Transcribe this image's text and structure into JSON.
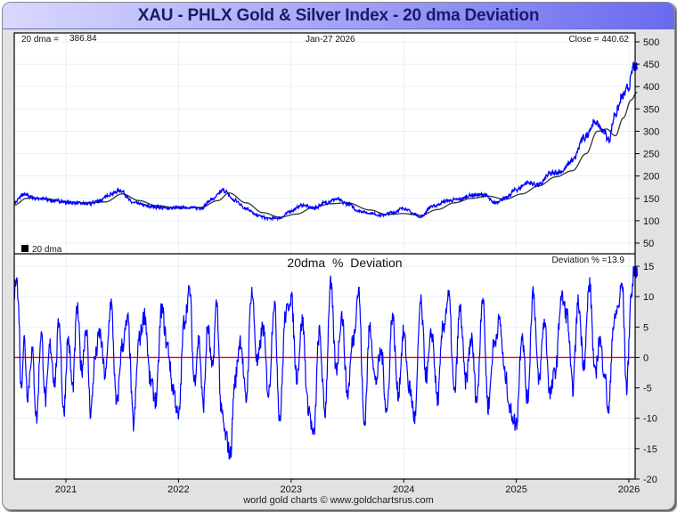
{
  "header": {
    "title": "XAU - PHLX Gold & Silver Index - 20 dma Deviation"
  },
  "footer": {
    "credit": "world gold charts © www.goldchartsrus.com"
  },
  "colors": {
    "price": "#0000ff",
    "dma": "#333333",
    "deviation": "#0000ff",
    "zero_line": "#ff0000",
    "grid": "#e6f0f8"
  },
  "chart_data": [
    {
      "type": "line",
      "panel": "price",
      "info": {
        "dma_label": "20 dma =",
        "dma_value": "386.84",
        "date": "Jan-27  2026",
        "close": "Close = 440.62"
      },
      "legend": {
        "label": "20 dma",
        "placement": "bottom-left"
      },
      "ylim": [
        35,
        520
      ],
      "yticks": [
        50,
        100,
        150,
        200,
        250,
        300,
        350,
        400,
        450,
        500
      ],
      "ytick_labels": [
        "50",
        "100",
        "150",
        "200",
        "250",
        "300",
        "350",
        "400",
        "450",
        "500"
      ],
      "xlim": [
        2020.54,
        2026.08
      ],
      "series": [
        {
          "name": "Close",
          "x": [
            2020.54,
            2020.62,
            2020.75,
            2020.9,
            2021.05,
            2021.2,
            2021.3,
            2021.4,
            2021.48,
            2021.6,
            2021.75,
            2021.9,
            2022.05,
            2022.2,
            2022.3,
            2022.4,
            2022.5,
            2022.6,
            2022.7,
            2022.8,
            2022.9,
            2023.0,
            2023.1,
            2023.2,
            2023.3,
            2023.4,
            2023.5,
            2023.6,
            2023.7,
            2023.8,
            2023.9,
            2024.0,
            2024.1,
            2024.15,
            2024.25,
            2024.4,
            2024.5,
            2024.6,
            2024.72,
            2024.8,
            2024.9,
            2025.0,
            2025.1,
            2025.2,
            2025.3,
            2025.4,
            2025.5,
            2025.6,
            2025.7,
            2025.78,
            2025.82,
            2025.88,
            2025.95,
            2026.0,
            2026.04,
            2026.07
          ],
          "y": [
            140,
            158,
            150,
            145,
            140,
            138,
            145,
            160,
            168,
            140,
            132,
            128,
            130,
            128,
            148,
            168,
            145,
            128,
            112,
            105,
            106,
            122,
            135,
            128,
            140,
            148,
            138,
            122,
            117,
            112,
            118,
            128,
            115,
            108,
            132,
            145,
            148,
            157,
            158,
            140,
            150,
            170,
            185,
            180,
            205,
            210,
            235,
            285,
            320,
            300,
            280,
            340,
            380,
            400,
            445,
            440
          ]
        },
        {
          "name": "20 dma",
          "x": [
            2020.54,
            2020.65,
            2020.8,
            2021.0,
            2021.2,
            2021.35,
            2021.5,
            2021.65,
            2021.8,
            2022.0,
            2022.2,
            2022.35,
            2022.45,
            2022.6,
            2022.75,
            2022.9,
            2023.05,
            2023.2,
            2023.35,
            2023.5,
            2023.7,
            2023.85,
            2024.0,
            2024.15,
            2024.3,
            2024.45,
            2024.6,
            2024.75,
            2024.9,
            2025.05,
            2025.2,
            2025.35,
            2025.5,
            2025.62,
            2025.72,
            2025.8,
            2025.88,
            2025.95,
            2026.02,
            2026.07
          ],
          "y": [
            135,
            150,
            150,
            142,
            140,
            142,
            160,
            145,
            134,
            128,
            130,
            145,
            162,
            140,
            118,
            108,
            115,
            130,
            138,
            140,
            124,
            114,
            116,
            112,
            125,
            140,
            150,
            155,
            148,
            160,
            178,
            198,
            212,
            250,
            300,
            305,
            290,
            330,
            370,
            387
          ]
        }
      ]
    },
    {
      "type": "line",
      "panel": "deviation",
      "title": "20dma  %  Deviation",
      "info": {
        "deviation": "Deviation % =13.9"
      },
      "ylim": [
        -20,
        15
      ],
      "yticks": [
        -20,
        -15,
        -10,
        -5,
        0,
        5,
        10,
        15
      ],
      "ytick_labels": [
        "-20",
        "-15",
        "-10",
        "-5",
        "0",
        "5",
        "10",
        "15"
      ],
      "xlim": [
        2020.54,
        2026.08
      ],
      "xticks": [
        2021.0,
        2022.0,
        2023.0,
        2024.0,
        2025.0,
        2026.0
      ],
      "xtick_labels": [
        "2021",
        "2022",
        "2023",
        "2024",
        "2025",
        "2026"
      ],
      "series": [
        {
          "name": "Deviation %",
          "x": [
            2020.54,
            2020.56,
            2020.58,
            2020.6,
            2020.63,
            2020.66,
            2020.7,
            2020.74,
            2020.78,
            2020.82,
            2020.86,
            2020.9,
            2020.94,
            2020.98,
            2021.02,
            2021.06,
            2021.1,
            2021.14,
            2021.18,
            2021.22,
            2021.26,
            2021.3,
            2021.35,
            2021.4,
            2021.45,
            2021.5,
            2021.55,
            2021.6,
            2021.65,
            2021.7,
            2021.75,
            2021.8,
            2021.85,
            2021.9,
            2021.95,
            2022.0,
            2022.05,
            2022.1,
            2022.14,
            2022.18,
            2022.22,
            2022.26,
            2022.3,
            2022.34,
            2022.38,
            2022.42,
            2022.46,
            2022.5,
            2022.55,
            2022.6,
            2022.65,
            2022.7,
            2022.75,
            2022.8,
            2022.85,
            2022.9,
            2022.95,
            2023.0,
            2023.05,
            2023.1,
            2023.15,
            2023.2,
            2023.25,
            2023.3,
            2023.35,
            2023.4,
            2023.45,
            2023.5,
            2023.55,
            2023.6,
            2023.65,
            2023.7,
            2023.75,
            2023.8,
            2023.85,
            2023.9,
            2023.95,
            2024.0,
            2024.05,
            2024.1,
            2024.15,
            2024.2,
            2024.25,
            2024.3,
            2024.35,
            2024.4,
            2024.45,
            2024.5,
            2024.55,
            2024.6,
            2024.65,
            2024.7,
            2024.75,
            2024.8,
            2024.85,
            2024.9,
            2024.95,
            2025.0,
            2025.05,
            2025.1,
            2025.15,
            2025.2,
            2025.25,
            2025.3,
            2025.35,
            2025.4,
            2025.45,
            2025.5,
            2025.55,
            2025.6,
            2025.65,
            2025.7,
            2025.74,
            2025.78,
            2025.82,
            2025.86,
            2025.9,
            2025.94,
            2025.98,
            2026.02,
            2026.05,
            2026.07
          ],
          "y": [
            10,
            14,
            8,
            -5,
            3,
            -6,
            1,
            -10,
            4,
            -7,
            2,
            -4,
            6,
            -9,
            3,
            -5,
            8,
            -2,
            5,
            -9,
            0,
            4,
            -3,
            9,
            -8,
            2,
            6,
            -11,
            3,
            7,
            -4,
            -7,
            8,
            2,
            -5,
            -10,
            6,
            11,
            -4,
            3,
            -8,
            5,
            -2,
            9,
            -9,
            -13,
            -16,
            -4,
            3,
            -7,
            11,
            -1,
            5,
            -6,
            9,
            -10,
            7,
            10,
            -3,
            6,
            -8,
            -13,
            4,
            -9,
            12,
            -2,
            7,
            -6,
            3,
            11,
            -11,
            5,
            -4,
            1,
            -9,
            7,
            -6,
            4,
            -5,
            -10,
            9,
            -3,
            4,
            -7,
            5,
            10,
            -6,
            8,
            -4,
            3,
            -7,
            10,
            -8,
            2,
            6,
            -3,
            -9,
            -11,
            4,
            -7,
            11,
            -4,
            6,
            -6,
            -2,
            10,
            7,
            -5,
            9,
            -1,
            12,
            -3,
            3,
            -2,
            -9,
            5,
            8,
            12,
            -5,
            10,
            15,
            14
          ]
        }
      ]
    }
  ]
}
